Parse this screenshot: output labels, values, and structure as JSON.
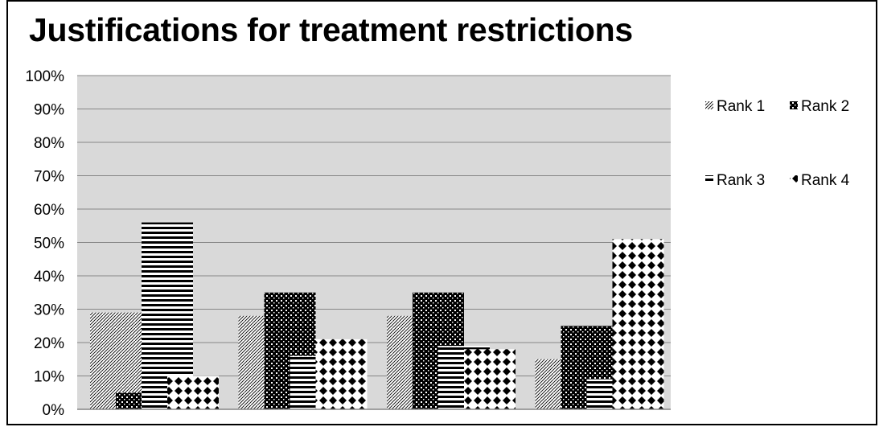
{
  "chart_data": {
    "type": "bar",
    "title": "Justifications for treatment restrictions",
    "xlabel": "",
    "ylabel": "",
    "ylim": [
      0,
      100
    ],
    "y_ticks": [
      "0%",
      "10%",
      "20%",
      "30%",
      "40%",
      "50%",
      "60%",
      "70%",
      "80%",
      "90%",
      "100%"
    ],
    "categories": [
      "",
      "",
      "",
      ""
    ],
    "series": [
      {
        "name": "Rank 1",
        "values": [
          29,
          28,
          28,
          15
        ]
      },
      {
        "name": "Rank 2",
        "values": [
          5,
          35,
          35,
          25
        ]
      },
      {
        "name": "Rank 3",
        "values": [
          56,
          16,
          19,
          9
        ]
      },
      {
        "name": "Rank 4",
        "values": [
          10,
          21,
          18,
          51
        ]
      }
    ],
    "grid": true,
    "legend_position": "right",
    "plot_background": "#d9d9d9"
  }
}
